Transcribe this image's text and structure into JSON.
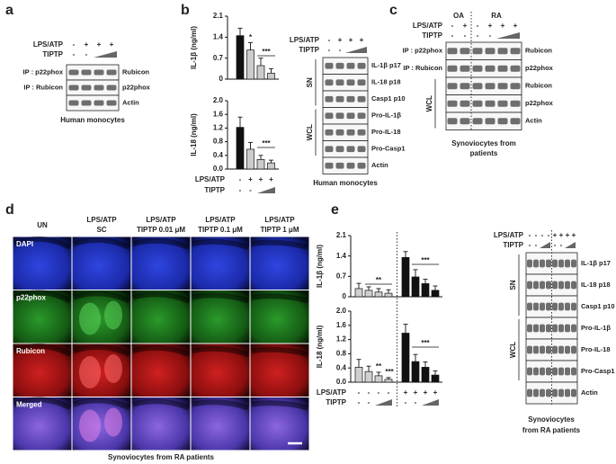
{
  "panel_a": {
    "letter": "a",
    "blot": {
      "conditions": [
        {
          "label": "LPS/ATP",
          "signs": [
            "-",
            "+",
            "+",
            "+"
          ]
        },
        {
          "label": "TIPTP",
          "signs": [
            "-",
            "-"
          ]
        }
      ],
      "sections": [
        {
          "ip": "IP : p22phox",
          "bands": [
            "Rubicon"
          ]
        },
        {
          "ip": "IP : Rubicon",
          "bands": [
            "p22phox"
          ]
        },
        {
          "bands": [
            "Actin"
          ]
        }
      ]
    },
    "caption": "Human monocytes"
  },
  "panel_b": {
    "letter": "b",
    "chart_conditions": [
      {
        "label": "LPS/ATP",
        "signs": [
          "-",
          "+",
          "+",
          "+"
        ]
      },
      {
        "label": "TIPTP",
        "signs": [
          "-",
          "-"
        ]
      }
    ],
    "blot": {
      "conditions": [
        {
          "label": "LPS/ATP",
          "signs": [
            "-",
            "+",
            "+",
            "+"
          ]
        },
        {
          "label": "TIPTP",
          "signs": [
            "-",
            "-"
          ]
        }
      ],
      "sections": [
        {
          "name": "SN",
          "bands": [
            "IL-1β p17",
            "IL-18 p18",
            "Casp1 p10"
          ]
        },
        {
          "name": "WCL",
          "bands": [
            "Pro-IL-1β",
            "Pro-IL-18",
            "Pro-Casp1"
          ]
        },
        {
          "bands": [
            "Actin"
          ]
        }
      ]
    },
    "caption": "Human monocytes"
  },
  "panel_c": {
    "letter": "c",
    "groups": [
      "OA",
      "RA"
    ],
    "blot": {
      "conditions": [
        {
          "label": "LPS/ATP",
          "signs": [
            "-",
            "+",
            "-",
            "+",
            "+",
            "+"
          ]
        },
        {
          "label": "TIPTP",
          "signs": [
            "-",
            "-",
            "-",
            "-"
          ]
        }
      ],
      "sections": [
        {
          "ip": "IP : p22phox",
          "bands": [
            "Rubicon"
          ]
        },
        {
          "ip": "IP : Rubicon",
          "bands": [
            "p22phox"
          ]
        },
        {
          "name": "WCL",
          "bands": [
            "Rubicon",
            "p22phox",
            "Actin"
          ]
        }
      ]
    },
    "caption": [
      "Synoviocytes from",
      "patients"
    ]
  },
  "panel_d": {
    "letter": "d",
    "columns": [
      [
        "UN"
      ],
      [
        "LPS/ATP",
        "SC"
      ],
      [
        "LPS/ATP",
        "TIPTP 0.01 μM"
      ],
      [
        "LPS/ATP",
        "TIPTP 0.1 μM"
      ],
      [
        "LPS/ATP",
        "TIPTP 1 μM"
      ]
    ],
    "rows": [
      "DAPI",
      "p22phox",
      "Rubicon",
      "Merged"
    ],
    "caption": "Synoviocytes from RA patients"
  },
  "panel_e": {
    "letter": "e",
    "chart_conditions": [
      {
        "label": "LPS/ATP",
        "signs": [
          "-",
          "-",
          "-",
          "-",
          "+",
          "+",
          "+",
          "+"
        ]
      },
      {
        "label": "TIPTP",
        "signs": [
          "-",
          "-",
          "-",
          "-"
        ]
      }
    ],
    "blot": {
      "conditions": [
        {
          "label": "LPS/ATP",
          "signs": [
            "-",
            "-",
            "-",
            "-",
            "+",
            "+",
            "+",
            "+"
          ]
        },
        {
          "label": "TIPTP",
          "signs": [
            "-",
            "-",
            "-",
            "-"
          ]
        }
      ],
      "sections": [
        {
          "name": "SN",
          "bands": [
            "IL-1β p17",
            "IL-18 p18",
            "Casp1 p10"
          ]
        },
        {
          "name": "WCL",
          "bands": [
            "Pro-IL-1β",
            "Pro-IL-18",
            "Pro-Casp1"
          ]
        },
        {
          "bands": [
            "Actin"
          ]
        }
      ]
    },
    "caption": [
      "Synoviocytes",
      "from RA patients"
    ]
  },
  "chart_data": [
    {
      "type": "bar",
      "ylabel": "IL-1β (ng/ml)",
      "ylim": [
        0,
        2.1
      ],
      "yticks": [
        0,
        0.7,
        1.4,
        2.1
      ],
      "values": [
        1.45,
        0.97,
        0.45,
        0.2
      ],
      "errors": [
        0.25,
        0.25,
        0.25,
        0.15
      ],
      "colors": [
        "#111111",
        "#cccccc",
        "#cccccc",
        "#cccccc"
      ],
      "annotations": [
        "*",
        "***"
      ]
    },
    {
      "type": "bar",
      "ylabel": "IL-18 (ng/ml)",
      "ylim": [
        0,
        2
      ],
      "yticks": [
        {
          "value": 0,
          "label": "0.0"
        },
        0.4,
        0.8,
        1.2,
        1.6,
        {
          "value": 2,
          "label": "2.0"
        }
      ],
      "values": [
        1.22,
        0.58,
        0.28,
        0.18
      ],
      "errors": [
        0.3,
        0.2,
        0.12,
        0.08
      ],
      "colors": [
        "#111111",
        "#cccccc",
        "#cccccc",
        "#cccccc"
      ],
      "annotations": [
        "***"
      ]
    },
    {
      "type": "bar",
      "ylabel": "IL-1β (ng/ml)",
      "ylim": [
        0,
        2.1
      ],
      "yticks": [
        0,
        0.7,
        1.4,
        2.1
      ],
      "values": [
        0.28,
        0.22,
        0.16,
        0.12,
        1.35,
        0.68,
        0.45,
        0.22
      ],
      "errors": [
        0.18,
        0.12,
        0.12,
        0.12,
        0.2,
        0.25,
        0.15,
        0.15
      ],
      "colors": [
        "#d0d0d0",
        "#d0d0d0",
        "#d0d0d0",
        "#d0d0d0",
        "#111111",
        "#111111",
        "#111111",
        "#111111"
      ],
      "annotations": [
        "**",
        "***"
      ]
    },
    {
      "type": "bar",
      "ylabel": "IL-18 (ng/ml)",
      "ylim": [
        0,
        2
      ],
      "yticks": [
        {
          "value": 0,
          "label": "0.0"
        },
        0.4,
        0.8,
        1.2,
        1.6,
        {
          "value": 2,
          "label": "2.0"
        }
      ],
      "values": [
        0.42,
        0.3,
        0.18,
        0.08,
        1.38,
        0.58,
        0.42,
        0.2
      ],
      "errors": [
        0.22,
        0.15,
        0.1,
        0.05,
        0.25,
        0.2,
        0.15,
        0.12
      ],
      "colors": [
        "#d0d0d0",
        "#d0d0d0",
        "#d0d0d0",
        "#d0d0d0",
        "#111111",
        "#111111",
        "#111111",
        "#111111"
      ],
      "annotations": [
        "**",
        "***",
        "***"
      ]
    }
  ]
}
